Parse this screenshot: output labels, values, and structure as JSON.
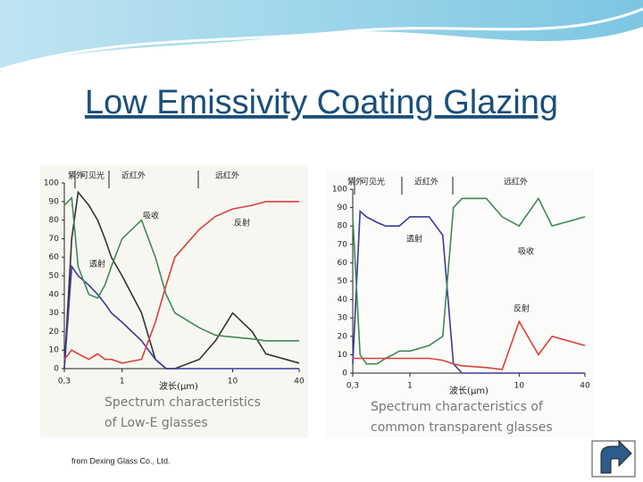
{
  "title": "Low Emissivity Coating Glazing",
  "footer": "from Dexing Glass Co., Ltd.",
  "chart_data": [
    {
      "type": "line",
      "xscale": "log",
      "bands": [
        "紫外",
        "可见光",
        "近红外",
        "远红外"
      ],
      "xlabel": "波长(μm)",
      "caption": [
        "Spectrum characteristics",
        "of Low-E glasses"
      ],
      "x": [
        0.3,
        0.35,
        0.4,
        0.5,
        0.6,
        0.7,
        0.8,
        1,
        1.5,
        2,
        2.5,
        3,
        5,
        7,
        10,
        15,
        20,
        40
      ],
      "xlim": [
        0.3,
        40
      ],
      "xticks": [
        {
          "value": 0.3,
          "label": "0,3"
        },
        1,
        10,
        40
      ],
      "ylim": [
        0,
        100
      ],
      "yticks": [
        0,
        10,
        20,
        30,
        40,
        50,
        60,
        70,
        80,
        90,
        100
      ],
      "series": [
        {
          "color": "#333333",
          "values": [
            0,
            70,
            95,
            88,
            80,
            70,
            60,
            50,
            30,
            5,
            0,
            0,
            5,
            15,
            30,
            20,
            8,
            3
          ]
        },
        {
          "name": "透射",
          "color": "#3a3a9a",
          "values": [
            0,
            55,
            50,
            45,
            40,
            35,
            30,
            25,
            15,
            5,
            0,
            0,
            0,
            0,
            0,
            0,
            0,
            0
          ]
        },
        {
          "name": "吸收",
          "color": "#3f8a55",
          "values": [
            88,
            92,
            55,
            40,
            38,
            45,
            55,
            70,
            80,
            60,
            40,
            30,
            22,
            18,
            17,
            16,
            15,
            15
          ]
        },
        {
          "name": "反射",
          "color": "#d8413a",
          "values": [
            5,
            10,
            8,
            5,
            8,
            5,
            5,
            3,
            5,
            25,
            45,
            60,
            75,
            82,
            86,
            88,
            90,
            90
          ]
        }
      ]
    },
    {
      "type": "line",
      "xscale": "log",
      "bands": [
        "紫外",
        "可见光",
        "近红外",
        "远红外"
      ],
      "xlabel": "波长(μm)",
      "caption": [
        "Spectrum characteristics of",
        "common transparent glasses"
      ],
      "x": [
        0.3,
        0.35,
        0.4,
        0.5,
        0.6,
        0.7,
        0.8,
        1,
        1.5,
        2,
        2.5,
        3,
        5,
        7,
        10,
        15,
        20,
        40
      ],
      "xlim": [
        0.3,
        40
      ],
      "xticks": [
        {
          "value": 0.3,
          "label": "0,3"
        },
        1,
        10,
        40
      ],
      "ylim": [
        0,
        100
      ],
      "yticks": [
        0,
        10,
        20,
        30,
        40,
        50,
        60,
        70,
        80,
        90,
        100
      ],
      "series": [
        {
          "name": "透射",
          "color": "#3a3a9a",
          "values": [
            5,
            88,
            85,
            82,
            80,
            80,
            80,
            85,
            85,
            75,
            5,
            0,
            0,
            0,
            0,
            0,
            0,
            0
          ]
        },
        {
          "name": "吸收",
          "color": "#3f8a55",
          "values": [
            85,
            10,
            5,
            5,
            8,
            10,
            12,
            12,
            15,
            20,
            90,
            95,
            95,
            85,
            80,
            95,
            80,
            85
          ]
        },
        {
          "name": "反射",
          "color": "#d8413a",
          "values": [
            8,
            8,
            8,
            8,
            8,
            8,
            8,
            8,
            8,
            7,
            5,
            4,
            3,
            2,
            28,
            10,
            20,
            15
          ]
        }
      ]
    }
  ]
}
